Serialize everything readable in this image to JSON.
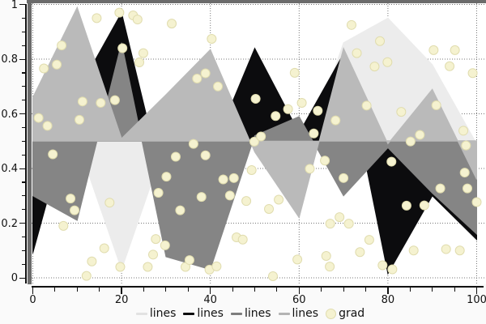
{
  "window": {
    "background": "#fafafa",
    "frame_color": "#6b6b6b",
    "plot_background": "#ffffff"
  },
  "chart_data": {
    "type": "area",
    "description": "Four fill-between-0.5 area series plus one scatter series on a white pyqtgraph-style plot with dotted gridlines",
    "x": [
      0,
      10,
      20,
      30,
      40,
      50,
      60,
      70,
      80,
      90,
      100
    ],
    "baseline": 0.5,
    "grid": {
      "on": true,
      "style": "dotted",
      "color": "#777777"
    },
    "xlabel": "",
    "ylabel": "",
    "title": "",
    "axes": {
      "x": {
        "range": [
          0,
          100
        ],
        "major_ticks": [
          0,
          20,
          40,
          60,
          80,
          100
        ],
        "tick_labels": [
          "0",
          "20",
          "40",
          "60",
          "80",
          "100"
        ],
        "minor_step": 5
      },
      "y": {
        "range": [
          0,
          1
        ],
        "major_ticks": [
          0,
          0.2,
          0.4,
          0.6,
          0.8,
          1
        ],
        "tick_labels": [
          "0",
          "0.2",
          "0.4",
          "0.6",
          "0.8",
          "1"
        ],
        "minor_step": 0.05
      }
    },
    "series": [
      {
        "name": "lines",
        "color": "#ececec",
        "values": [
          0.52,
          0.5,
          0.03,
          0.5,
          0.52,
          0.48,
          0.39,
          0.86,
          0.95,
          0.78,
          0.49
        ]
      },
      {
        "name": "lines",
        "color": "#0c0c0e",
        "values": [
          0.09,
          0.68,
          0.97,
          0.3,
          0.45,
          0.84,
          0.53,
          0.82,
          0.015,
          0.3,
          0.14
        ]
      },
      {
        "name": "lines",
        "color": "#858585",
        "values": [
          0.3,
          0.21,
          0.86,
          0.077,
          0.03,
          0.52,
          0.59,
          0.3,
          0.476,
          0.31,
          0.16
        ]
      },
      {
        "name": "lines",
        "color": "#bababa",
        "values": [
          0.66,
          0.99,
          0.51,
          0.67,
          0.835,
          0.46,
          0.22,
          0.84,
          0.49,
          0.69,
          0.36
        ]
      }
    ],
    "scatter": {
      "name": "grad",
      "fill": "#f5f2d0",
      "edge": "#e0dcae",
      "radius": 5.5,
      "points": [
        [
          1.3,
          0.585
        ],
        [
          2.5,
          0.766
        ],
        [
          3.3,
          0.556
        ],
        [
          4.5,
          0.452
        ],
        [
          5.4,
          0.78
        ],
        [
          6.5,
          0.85
        ],
        [
          6.9,
          0.19
        ],
        [
          8.5,
          0.29
        ],
        [
          9.4,
          0.247
        ],
        [
          10.5,
          0.578
        ],
        [
          11.2,
          0.645
        ],
        [
          12.1,
          0.007
        ],
        [
          13.3,
          0.06
        ],
        [
          14.4,
          0.95
        ],
        [
          15.3,
          0.64
        ],
        [
          16.1,
          0.108
        ],
        [
          17.3,
          0.275
        ],
        [
          18.5,
          0.65
        ],
        [
          19.5,
          0.97
        ],
        [
          19.7,
          0.04
        ],
        [
          20.2,
          0.84
        ],
        [
          22.6,
          0.96
        ],
        [
          23.6,
          0.945
        ],
        [
          24.0,
          0.788
        ],
        [
          24.9,
          0.822
        ],
        [
          25.9,
          0.04
        ],
        [
          27.1,
          0.085
        ],
        [
          27.7,
          0.142
        ],
        [
          28.3,
          0.311
        ],
        [
          29.8,
          0.119
        ],
        [
          30.1,
          0.37
        ],
        [
          31.3,
          0.93
        ],
        [
          32.2,
          0.443
        ],
        [
          33.2,
          0.247
        ],
        [
          34.4,
          0.04
        ],
        [
          35.3,
          0.065
        ],
        [
          36.2,
          0.49
        ],
        [
          37.0,
          0.729
        ],
        [
          38.0,
          0.296
        ],
        [
          38.9,
          0.748
        ],
        [
          38.9,
          0.448
        ],
        [
          39.8,
          0.03
        ],
        [
          40.3,
          0.874
        ],
        [
          41.4,
          0.042
        ],
        [
          41.7,
          0.7
        ],
        [
          42.9,
          0.36
        ],
        [
          44.4,
          0.301
        ],
        [
          45.3,
          0.365
        ],
        [
          45.9,
          0.148
        ],
        [
          47.3,
          0.14
        ],
        [
          48.1,
          0.281
        ],
        [
          49.3,
          0.394
        ],
        [
          49.9,
          0.498
        ],
        [
          50.2,
          0.655
        ],
        [
          51.4,
          0.517
        ],
        [
          53.2,
          0.252
        ],
        [
          54.1,
          0.006
        ],
        [
          54.7,
          0.592
        ],
        [
          55.4,
          0.286
        ],
        [
          57.5,
          0.617
        ],
        [
          59.0,
          0.75
        ],
        [
          59.6,
          0.067
        ],
        [
          60.6,
          0.64
        ],
        [
          62.4,
          0.399
        ],
        [
          63.3,
          0.528
        ],
        [
          64.2,
          0.611
        ],
        [
          65.8,
          0.429
        ],
        [
          66.1,
          0.08
        ],
        [
          66.9,
          0.041
        ],
        [
          67.0,
          0.198
        ],
        [
          68.2,
          0.576
        ],
        [
          69.1,
          0.222
        ],
        [
          70.0,
          0.365
        ],
        [
          71.2,
          0.198
        ],
        [
          71.8,
          0.925
        ],
        [
          73.0,
          0.822
        ],
        [
          73.7,
          0.094
        ],
        [
          75.2,
          0.63
        ],
        [
          75.8,
          0.139
        ],
        [
          77.0,
          0.773
        ],
        [
          78.2,
          0.866
        ],
        [
          78.8,
          0.046
        ],
        [
          79.9,
          0.789
        ],
        [
          80.8,
          0.425
        ],
        [
          81.0,
          0.031
        ],
        [
          83.0,
          0.607
        ],
        [
          84.2,
          0.264
        ],
        [
          85.1,
          0.499
        ],
        [
          85.8,
          0.1
        ],
        [
          87.2,
          0.523
        ],
        [
          88.2,
          0.265
        ],
        [
          90.3,
          0.833
        ],
        [
          90.9,
          0.631
        ],
        [
          91.8,
          0.327
        ],
        [
          93.1,
          0.105
        ],
        [
          93.9,
          0.774
        ],
        [
          95.1,
          0.833
        ],
        [
          96.2,
          0.1
        ],
        [
          97.0,
          0.538
        ],
        [
          97.3,
          0.385
        ],
        [
          97.6,
          0.484
        ],
        [
          97.9,
          0.327
        ],
        [
          99.1,
          0.749
        ],
        [
          100.0,
          0.277
        ]
      ]
    },
    "legend": {
      "position": "bottom-center",
      "items": [
        {
          "label": "lines",
          "swatch": "line",
          "color": "#e2e2e2"
        },
        {
          "label": "lines",
          "swatch": "line",
          "color": "#0c0c0e"
        },
        {
          "label": "lines",
          "swatch": "line",
          "color": "#7d7d7d"
        },
        {
          "label": "lines",
          "swatch": "line",
          "color": "#b4b4b4"
        },
        {
          "label": "grad",
          "swatch": "dot",
          "color": "#f5f2d0"
        }
      ]
    }
  }
}
